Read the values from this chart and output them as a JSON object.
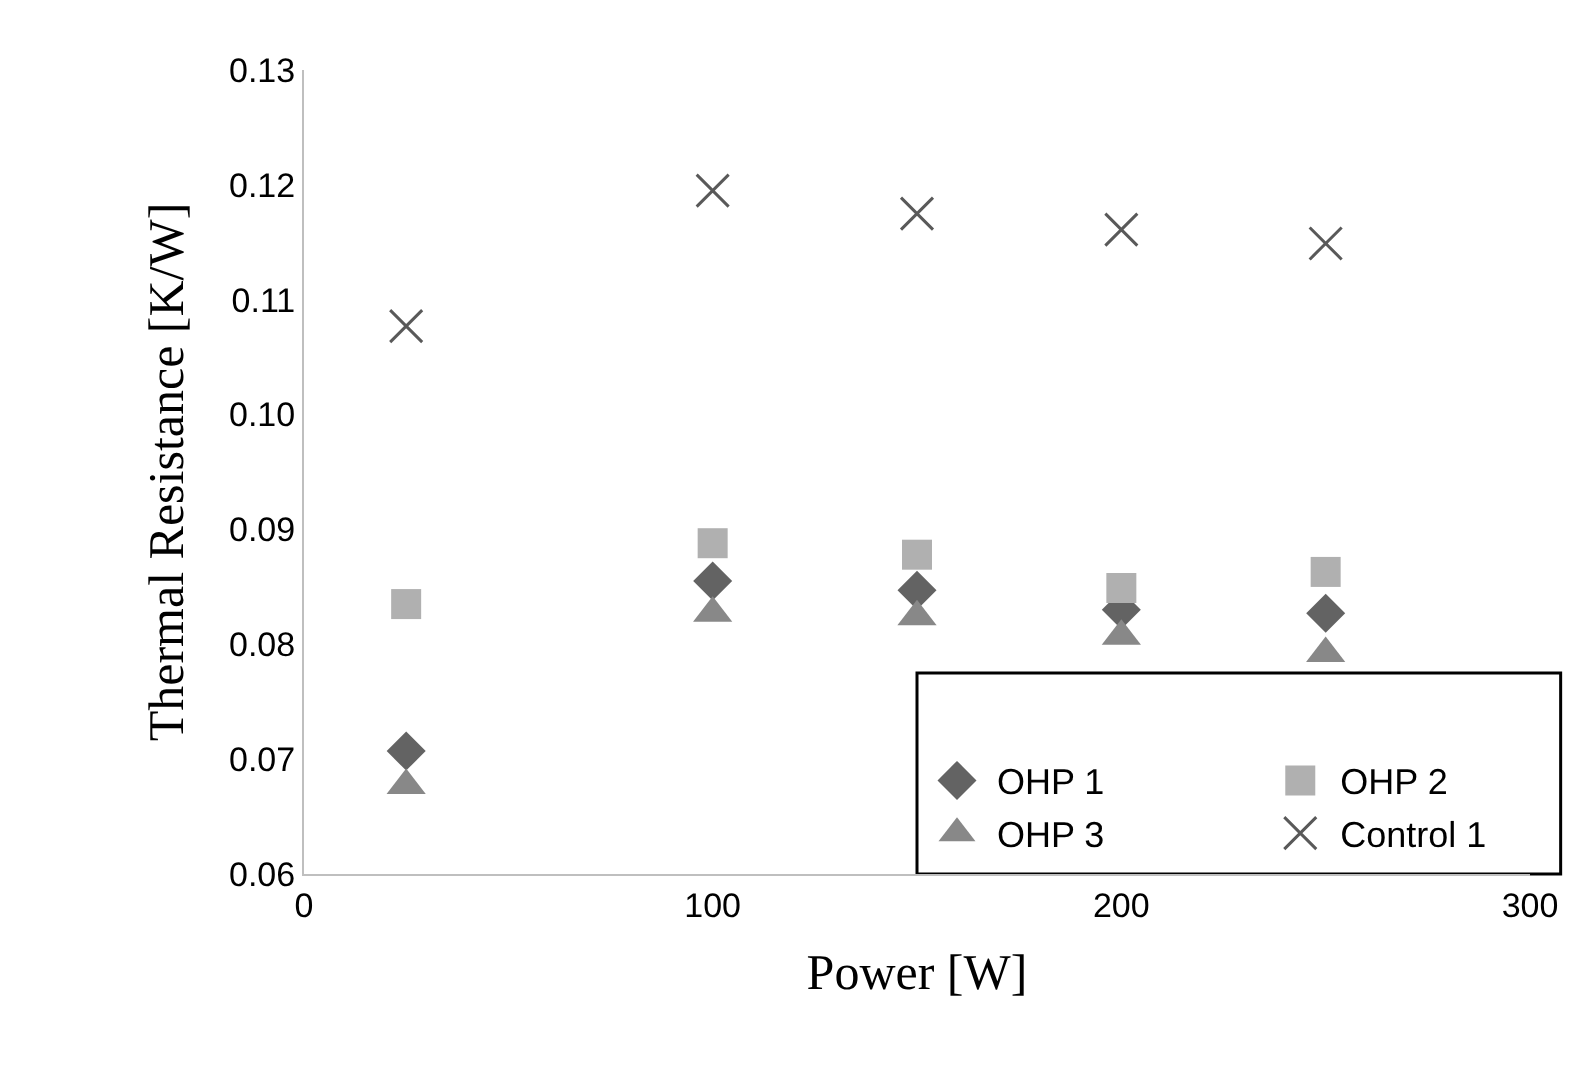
{
  "chart_data": {
    "type": "scatter",
    "xlabel": "Power [W]",
    "ylabel": "Thermal Resistance [K/W]",
    "x": [
      25,
      100,
      150,
      200,
      250
    ],
    "series": [
      {
        "name": "OHP 1",
        "color": "#636363",
        "marker": "diamond",
        "values": [
          0.0707,
          0.0855,
          0.0847,
          0.083,
          0.0827
        ]
      },
      {
        "name": "OHP 2",
        "color": "#b0b0b0",
        "marker": "square",
        "values": [
          0.0835,
          0.0888,
          0.0878,
          0.0849,
          0.0863
        ]
      },
      {
        "name": "OHP 3",
        "color": "#888888",
        "marker": "triangle",
        "values": [
          0.0677,
          0.0827,
          0.0824,
          0.0807,
          0.0792
        ]
      },
      {
        "name": "Control 1",
        "color": "#595959",
        "marker": "cross",
        "values": [
          0.1077,
          0.1195,
          0.1175,
          0.1161,
          0.1149
        ]
      }
    ],
    "xlim": [
      0,
      300
    ],
    "xticks": [
      0,
      100,
      200,
      300
    ],
    "ylim": [
      0.06,
      0.13
    ],
    "yticks": [
      {
        "value": 0.06,
        "label": "0.06"
      },
      {
        "value": 0.07,
        "label": "0.07"
      },
      {
        "value": 0.08,
        "label": "0.08"
      },
      {
        "value": 0.09,
        "label": "0.09"
      },
      {
        "value": 0.1,
        "label": "0.10"
      },
      {
        "value": 0.11,
        "label": "0.11"
      },
      {
        "value": 0.12,
        "label": "0.12"
      },
      {
        "value": 0.13,
        "label": "0.13"
      }
    ],
    "legend": "bottom right"
  }
}
